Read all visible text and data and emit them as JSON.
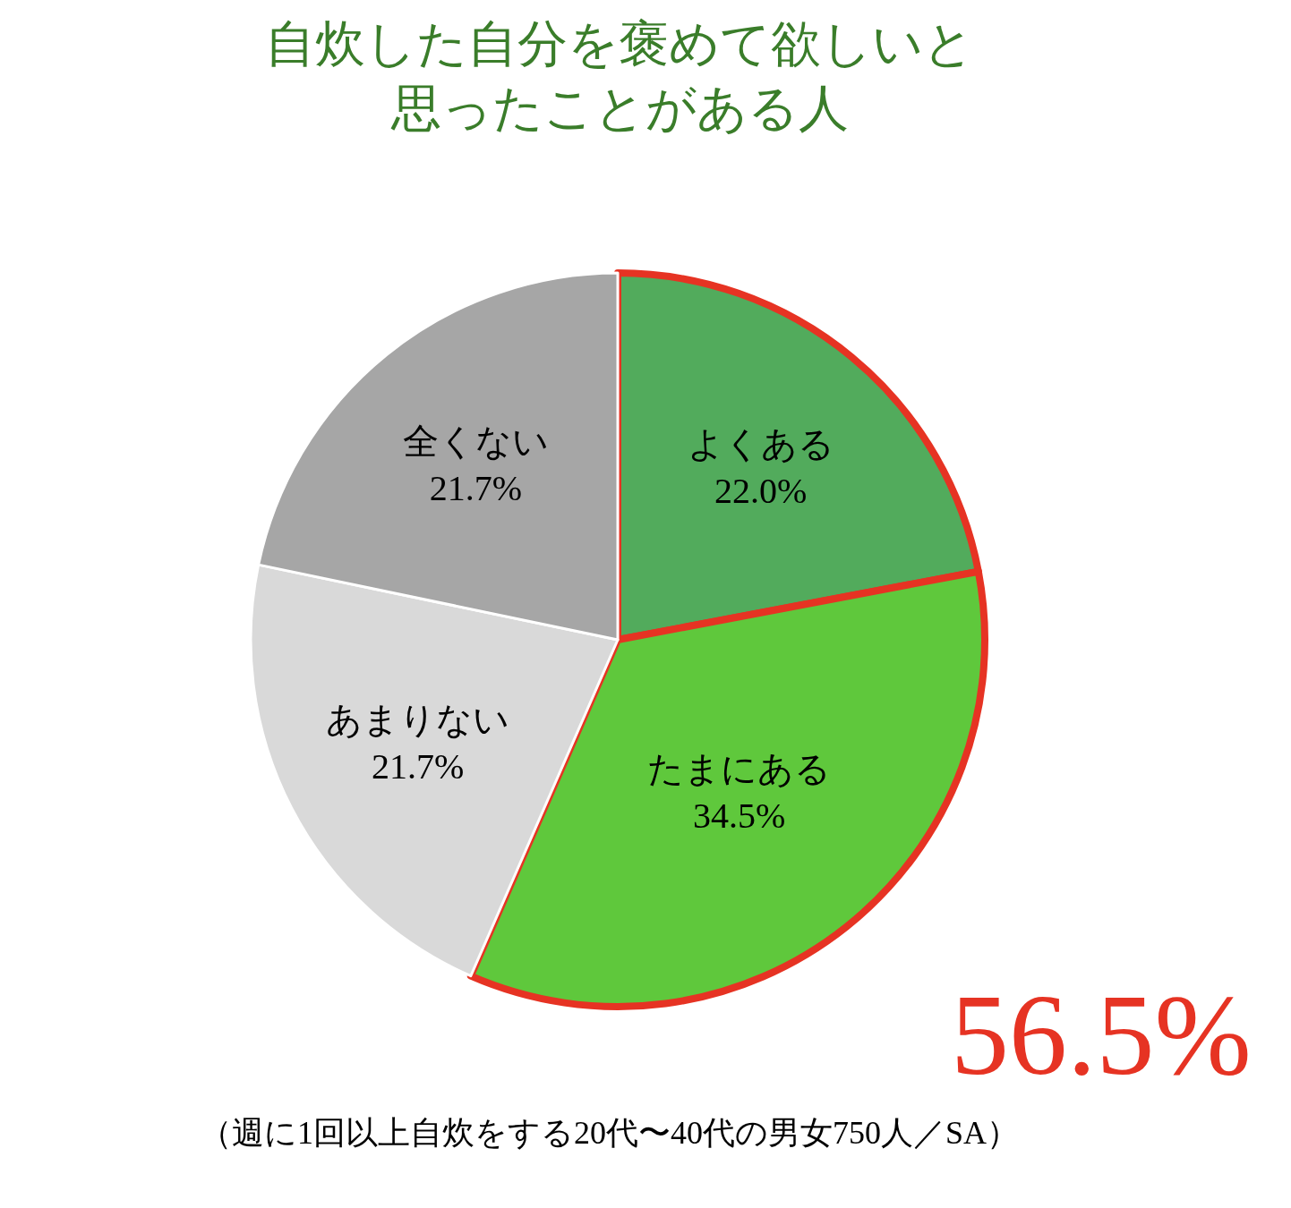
{
  "chart_data": {
    "type": "pie",
    "title": "自炊した自分を褒めて欲しいと思ったことがある人",
    "categories": [
      "よくある",
      "たまにある",
      "あまりない",
      "全くない"
    ],
    "values": [
      22.0,
      34.5,
      21.7,
      21.7
    ],
    "value_labels": [
      "22.0%",
      "34.5%",
      "21.7%",
      "21.7%"
    ],
    "colors": [
      "#52ab5c",
      "#5fc83c",
      "#d9d9d9",
      "#a6a6a6"
    ],
    "legend": false,
    "annotations": [
      "56.5%",
      "（週に1回以上自炊をする20代〜40代の男女750人／SA）"
    ]
  }
}
